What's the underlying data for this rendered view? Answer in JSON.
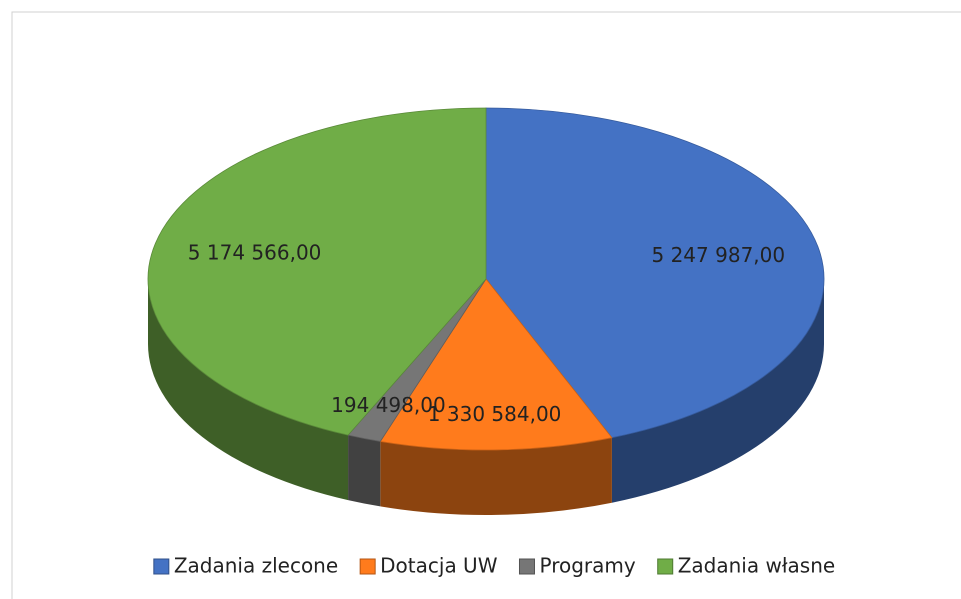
{
  "chart_data": {
    "type": "pie3d",
    "categories": [
      "Zadania zlecone",
      "Dotacja UW",
      "Programy",
      "Zadania własne"
    ],
    "values": [
      5247987,
      1330584,
      194498,
      5174566
    ],
    "value_labels": [
      "5 247 987,00",
      "1 330 584,00",
      "194 498,00",
      "5 174 566,00"
    ],
    "colors": [
      "#4472c4",
      "#ff7b1c",
      "#767676",
      "#70ad47"
    ],
    "legend": "bottom"
  }
}
